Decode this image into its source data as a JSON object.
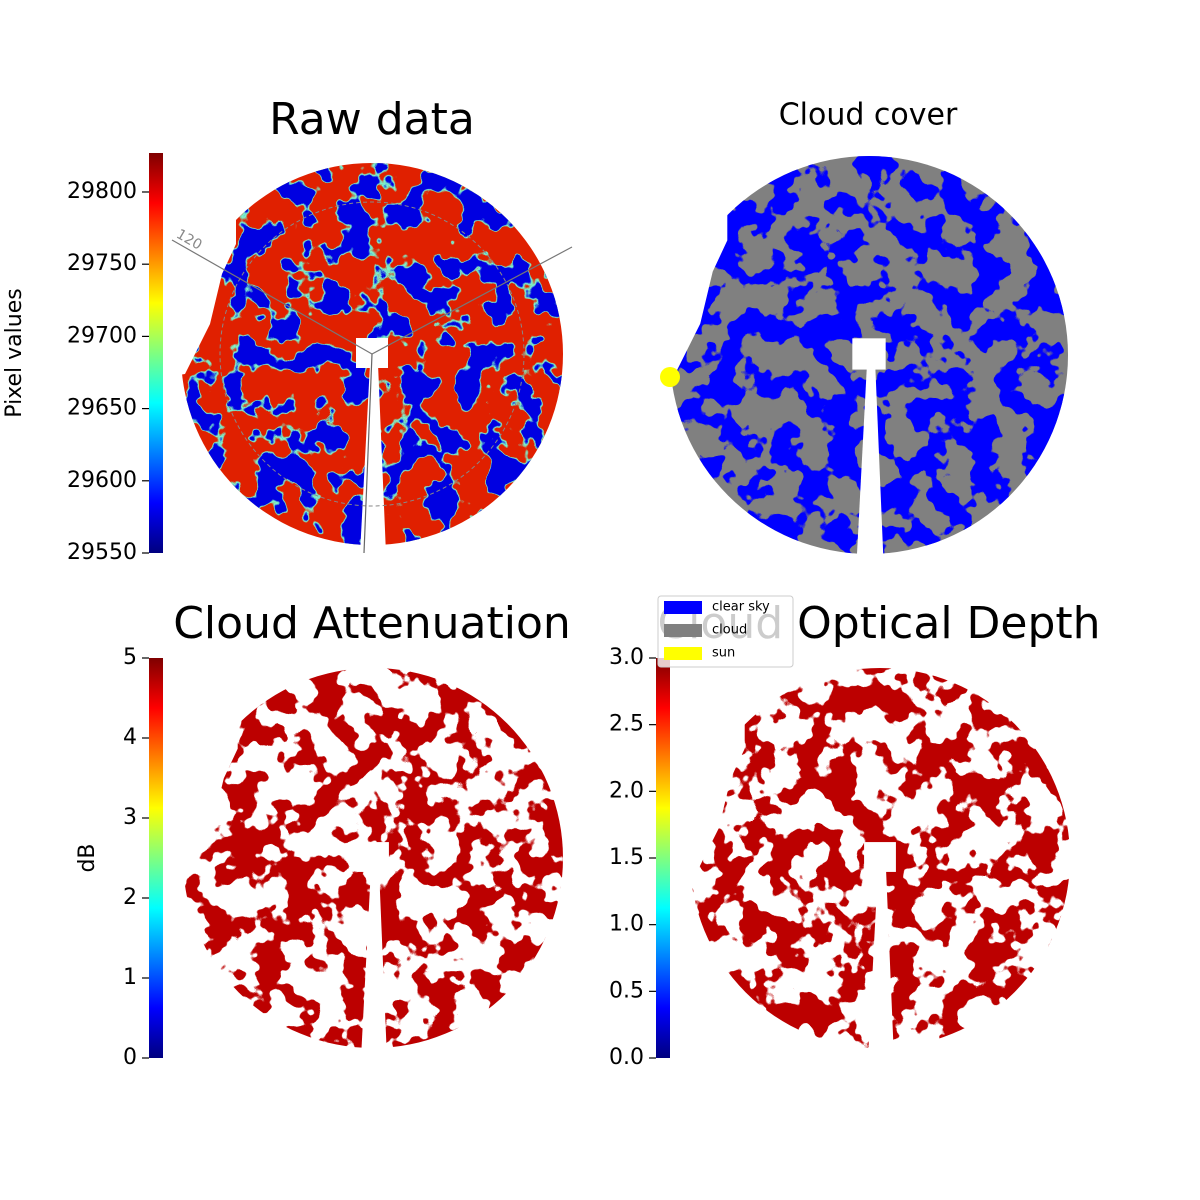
{
  "chart_data": [
    {
      "type": "image",
      "title": "Raw data",
      "annotations": [
        "120"
      ],
      "colorbar": {
        "label": "Pixel values",
        "colormap": "jet",
        "lim": [
          29550,
          29827
        ],
        "ticks": [
          29550,
          29600,
          29650,
          29700,
          29750,
          29800
        ]
      }
    },
    {
      "type": "image",
      "title": "Cloud cover",
      "legend": [
        {
          "name": "clear sky",
          "color": "#0000ff"
        },
        {
          "name": "cloud",
          "color": "#808080"
        },
        {
          "name": "sun",
          "color": "#ffff00"
        }
      ]
    },
    {
      "type": "image",
      "title": "Cloud Attenuation",
      "colorbar": {
        "label": "dB",
        "colormap": "jet",
        "lim": [
          0,
          5
        ],
        "ticks": [
          0,
          1,
          2,
          3,
          4,
          5
        ]
      }
    },
    {
      "type": "image",
      "title": "Cloud Optical Depth",
      "colorbar": {
        "colormap": "jet",
        "lim": [
          0,
          3
        ],
        "ticks": [
          {
            "value": 0,
            "label": "0.0"
          },
          {
            "value": 0.5,
            "label": "0.5"
          },
          {
            "value": 1,
            "label": "1.0"
          },
          {
            "value": 1.5,
            "label": "1.5"
          },
          {
            "value": 2,
            "label": "2.0"
          },
          {
            "value": 2.5,
            "label": "2.5"
          },
          {
            "value": 3,
            "label": "3.0"
          }
        ]
      }
    }
  ]
}
